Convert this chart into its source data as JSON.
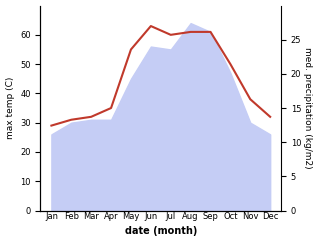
{
  "months": [
    "Jan",
    "Feb",
    "Mar",
    "Apr",
    "May",
    "Jun",
    "Jul",
    "Aug",
    "Sep",
    "Oct",
    "Nov",
    "Dec"
  ],
  "temp": [
    29,
    31,
    32,
    35,
    55,
    63,
    60,
    61,
    61,
    50,
    38,
    32
  ],
  "precip_left_scale": [
    26,
    30,
    31,
    31,
    45,
    56,
    55,
    64,
    61,
    47,
    30,
    26
  ],
  "temp_color": "#c0392b",
  "precip_fill_color": "#c5cdf5",
  "precip_line_color": "#aab4e8",
  "left_ylabel": "max temp (C)",
  "right_ylabel": "med. precipitation (kg/m2)",
  "xlabel": "date (month)",
  "ylim_left": [
    0,
    70
  ],
  "ylim_right": [
    0,
    30
  ],
  "left_yticks": [
    0,
    10,
    20,
    30,
    40,
    50,
    60
  ],
  "right_yticks": [
    0,
    5,
    10,
    15,
    20,
    25
  ],
  "bg_color": "#ffffff",
  "temp_linewidth": 1.5,
  "label_fontsize": 6.5,
  "tick_fontsize": 6,
  "xlabel_fontsize": 7
}
